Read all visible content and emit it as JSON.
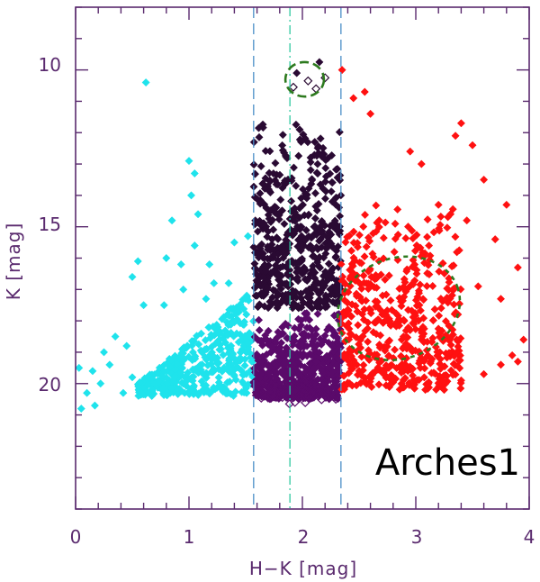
{
  "chart_data": {
    "type": "scatter",
    "title": "",
    "xlabel": "H−K [mag]",
    "ylabel": "K [mag]",
    "xlim": [
      0,
      4
    ],
    "ylim": [
      24,
      8
    ],
    "y_inverted": true,
    "x_ticks": [
      "0",
      "1",
      "2",
      "3",
      "4"
    ],
    "y_ticks": [
      "10",
      "15",
      "20"
    ],
    "annotation": "Arches1",
    "grid": false,
    "colors": {
      "axis": "#5a2a6e",
      "cyan": "#1fe3ec",
      "dark_purple": "#2a0a33",
      "purple": "#5a0a6a",
      "red": "#ff1111",
      "green": "#2d7a1e",
      "blue_line": "#4a8ec8",
      "teal_line": "#30c8a0"
    },
    "vertical_lines": [
      {
        "x": 1.57,
        "style": "dashed",
        "color": "#4a8ec8"
      },
      {
        "x": 2.34,
        "style": "dashed",
        "color": "#4a8ec8"
      },
      {
        "x": 1.89,
        "style": "dash-dot",
        "color": "#30c8a0"
      }
    ],
    "ellipses": [
      {
        "cx": 2.02,
        "cy": 10.3,
        "rx": 0.17,
        "ry": 0.55,
        "angle": 0,
        "color": "#2d7a1e"
      },
      {
        "cx": 2.85,
        "cy": 17.6,
        "rx": 0.55,
        "ry": 1.6,
        "angle": -20,
        "color": "#2d7a1e"
      }
    ],
    "series": [
      {
        "name": "",
        "color": "#1fe3ec",
        "x_range": [
          0.03,
          1.57
        ],
        "points": [
          [
            0.62,
            10.4
          ],
          [
            1.0,
            12.9
          ],
          [
            1.05,
            13.3
          ],
          [
            1.02,
            14.0
          ],
          [
            1.08,
            14.6
          ],
          [
            0.85,
            14.8
          ],
          [
            1.05,
            15.6
          ],
          [
            0.8,
            16.0
          ],
          [
            0.93,
            16.2
          ],
          [
            0.55,
            16.1
          ],
          [
            0.5,
            16.6
          ],
          [
            1.18,
            16.2
          ],
          [
            1.4,
            15.5
          ],
          [
            1.52,
            15.3
          ],
          [
            1.22,
            16.8
          ],
          [
            1.35,
            16.8
          ],
          [
            0.95,
            17.0
          ],
          [
            0.6,
            17.5
          ],
          [
            0.78,
            17.5
          ],
          [
            1.15,
            17.3
          ],
          [
            0.35,
            18.5
          ],
          [
            0.45,
            18.8
          ],
          [
            0.25,
            19.0
          ],
          [
            0.3,
            19.4
          ],
          [
            0.15,
            19.6
          ],
          [
            0.03,
            19.5
          ],
          [
            0.05,
            20.8
          ],
          [
            0.17,
            20.7
          ],
          [
            0.1,
            20.3
          ],
          [
            0.22,
            20.0
          ],
          [
            0.42,
            20.3
          ],
          [
            0.5,
            19.8
          ]
        ],
        "dense_region": {
          "x": [
            0.55,
            1.57
          ],
          "k": [
            17.2,
            20.2
          ],
          "count": 420
        }
      },
      {
        "name": "",
        "color": "#2a0a33",
        "dense_region": {
          "x": [
            1.57,
            2.34
          ],
          "k": [
            11.5,
            17.6
          ],
          "count": 520
        },
        "points": [
          [
            2.15,
            9.75
          ],
          [
            1.95,
            10.1
          ],
          [
            2.05,
            10.35
          ],
          [
            2.12,
            10.6
          ],
          [
            1.92,
            10.55
          ],
          [
            2.2,
            10.25
          ]
        ]
      },
      {
        "name": "",
        "color": "#5a0a6a",
        "dense_region": {
          "x": [
            1.57,
            2.34
          ],
          "k": [
            17.6,
            20.5
          ],
          "count": 520
        }
      },
      {
        "name": "",
        "color": "#ff1111",
        "points": [
          [
            2.35,
            10.0
          ],
          [
            2.55,
            10.7
          ],
          [
            2.45,
            10.9
          ],
          [
            2.6,
            11.4
          ],
          [
            3.4,
            11.7
          ],
          [
            3.35,
            12.1
          ],
          [
            2.95,
            12.6
          ],
          [
            3.05,
            13.0
          ],
          [
            3.5,
            12.4
          ],
          [
            3.6,
            13.5
          ],
          [
            3.2,
            14.3
          ],
          [
            3.8,
            14.3
          ],
          [
            3.45,
            14.8
          ],
          [
            3.7,
            15.4
          ],
          [
            3.9,
            16.3
          ],
          [
            3.55,
            16.9
          ],
          [
            3.75,
            17.3
          ],
          [
            3.95,
            18.6
          ],
          [
            3.85,
            19.1
          ],
          [
            3.9,
            19.3
          ],
          [
            3.6,
            19.7
          ],
          [
            3.75,
            19.4
          ],
          [
            3.4,
            19.9
          ],
          [
            3.25,
            20.2
          ]
        ],
        "dense_region": {
          "x": [
            2.34,
            3.4
          ],
          "k": [
            14.2,
            20.2
          ],
          "count": 520
        }
      }
    ]
  }
}
